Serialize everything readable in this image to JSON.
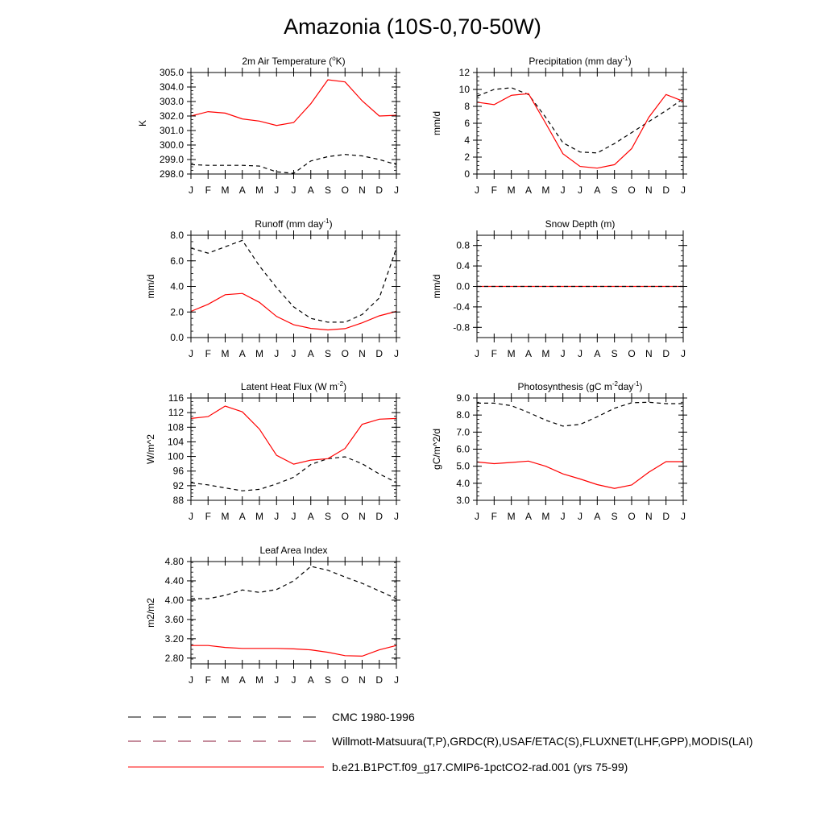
{
  "title": "Amazonia (10S-0,70-50W)",
  "colors": {
    "model": "#ff0000",
    "obs": "#000000",
    "axis": "#000000"
  },
  "months": [
    "J",
    "F",
    "M",
    "A",
    "M",
    "J",
    "J",
    "A",
    "S",
    "O",
    "N",
    "D",
    "J"
  ],
  "legend": [
    {
      "label": "CMC 1980-1996",
      "style": "dashed-black"
    },
    {
      "label": "Willmott-Matsuura(T,P),GRDC(R),USAF/ETAC(S),FLUXNET(LHF,GPP),MODIS(LAI)",
      "style": "dashed-mixed"
    },
    {
      "label": "b.e21.B1PCT.f09_g17.CMIP6-1pctCO2-rad.001 (yrs 75-99)",
      "style": "solid-red"
    }
  ],
  "chart_data": [
    {
      "type": "line",
      "title": "2m Air Temperature (",
      "title_sup": "o",
      "title_tail": "K)",
      "ylabel": "K",
      "ylim": [
        298.0,
        305.0
      ],
      "yticks": [
        298.0,
        299.0,
        300.0,
        301.0,
        302.0,
        303.0,
        304.0,
        305.0
      ],
      "tick_decimals": 1,
      "series": [
        {
          "role": "model",
          "values": [
            302.0,
            302.3,
            302.2,
            301.8,
            301.65,
            301.35,
            301.55,
            302.85,
            304.5,
            304.35,
            303.05,
            302.0,
            302.05
          ]
        },
        {
          "role": "obs",
          "values": [
            298.65,
            298.6,
            298.6,
            298.6,
            298.55,
            298.15,
            298.05,
            298.9,
            299.2,
            299.35,
            299.25,
            299.0,
            298.65
          ]
        }
      ]
    },
    {
      "type": "line",
      "title": "Precipitation (mm day",
      "title_sup": "-1",
      "title_tail": ")",
      "ylabel": "mm/d",
      "ylim": [
        0,
        12
      ],
      "yticks": [
        0,
        2,
        4,
        6,
        8,
        10,
        12
      ],
      "tick_decimals": 0,
      "series": [
        {
          "role": "model",
          "values": [
            8.5,
            8.2,
            9.3,
            9.5,
            6.0,
            2.4,
            0.9,
            0.7,
            1.1,
            3.0,
            6.7,
            9.4,
            8.6
          ]
        },
        {
          "role": "obs",
          "values": [
            9.2,
            10.0,
            10.2,
            9.4,
            6.7,
            3.7,
            2.6,
            2.5,
            3.6,
            4.9,
            6.2,
            7.5,
            8.9
          ]
        }
      ]
    },
    {
      "type": "line",
      "title": "Runoff (mm day",
      "title_sup": "-1",
      "title_tail": ")",
      "ylabel": "mm/d",
      "ylim": [
        0.0,
        8.0
      ],
      "yticks": [
        0.0,
        2.0,
        4.0,
        6.0,
        8.0
      ],
      "tick_decimals": 1,
      "series": [
        {
          "role": "model",
          "values": [
            2.05,
            2.6,
            3.35,
            3.45,
            2.75,
            1.65,
            1.0,
            0.72,
            0.6,
            0.7,
            1.15,
            1.7,
            2.05
          ]
        },
        {
          "role": "obs",
          "values": [
            7.0,
            6.6,
            7.1,
            7.6,
            5.6,
            3.9,
            2.4,
            1.5,
            1.2,
            1.2,
            1.8,
            3.1,
            7.0
          ]
        }
      ]
    },
    {
      "type": "line",
      "title": "Snow Depth (m)",
      "title_sup": "",
      "title_tail": "",
      "ylabel": "mm/d",
      "ylim": [
        -1.0,
        1.0
      ],
      "yticks": [
        -0.8,
        -0.4,
        0.0,
        0.4,
        0.8
      ],
      "tick_decimals": 1,
      "series": [
        {
          "role": "obs",
          "values": [
            0,
            0,
            0,
            0,
            0,
            0,
            0,
            0,
            0,
            0,
            0,
            0,
            0
          ]
        },
        {
          "role": "model",
          "values": [
            0,
            0,
            0,
            0,
            0,
            0,
            0,
            0,
            0,
            0,
            0,
            0,
            0
          ]
        }
      ]
    },
    {
      "type": "line",
      "title": "Latent Heat Flux (W m",
      "title_sup": "-2",
      "title_tail": ")",
      "ylabel": "W/m^2",
      "ylim": [
        88,
        116
      ],
      "yticks": [
        88,
        92,
        96,
        100,
        104,
        108,
        112,
        116
      ],
      "tick_decimals": 0,
      "series": [
        {
          "role": "model",
          "values": [
            110.4,
            110.9,
            113.8,
            112.2,
            107.5,
            100.3,
            97.9,
            99.0,
            99.4,
            102.2,
            108.8,
            110.2,
            110.4
          ]
        },
        {
          "role": "obs",
          "values": [
            92.8,
            92.2,
            91.4,
            90.6,
            91.0,
            92.5,
            94.3,
            97.8,
            99.4,
            99.9,
            98.0,
            95.2,
            92.9
          ]
        }
      ]
    },
    {
      "type": "line",
      "title": "Photosynthesis (gC m",
      "title_sup": "-2",
      "title_mid": "day",
      "title_sup2": "-1",
      "title_tail": ")",
      "ylabel": "gC/m^2/d",
      "ylim": [
        3.0,
        9.0
      ],
      "yticks": [
        3.0,
        4.0,
        5.0,
        6.0,
        7.0,
        8.0,
        9.0
      ],
      "tick_decimals": 1,
      "series": [
        {
          "role": "model",
          "values": [
            5.25,
            5.15,
            5.22,
            5.3,
            5.0,
            4.55,
            4.25,
            3.92,
            3.7,
            3.9,
            4.65,
            5.27,
            5.27
          ]
        },
        {
          "role": "obs",
          "values": [
            8.7,
            8.7,
            8.55,
            8.15,
            7.7,
            7.35,
            7.45,
            7.9,
            8.4,
            8.72,
            8.75,
            8.67,
            8.67
          ]
        }
      ]
    },
    {
      "type": "line",
      "title": "Leaf Area Index",
      "title_sup": "",
      "title_tail": "",
      "ylabel": "m2/m2",
      "ylim": [
        2.68,
        4.8
      ],
      "yticks": [
        2.8,
        3.2,
        3.6,
        4.0,
        4.4,
        4.8
      ],
      "tick_decimals": 2,
      "series": [
        {
          "role": "model",
          "values": [
            3.06,
            3.06,
            3.02,
            3.0,
            3.0,
            3.0,
            2.99,
            2.97,
            2.92,
            2.85,
            2.84,
            2.97,
            3.06
          ]
        },
        {
          "role": "obs",
          "values": [
            4.03,
            4.03,
            4.1,
            4.21,
            4.16,
            4.22,
            4.4,
            4.7,
            4.62,
            4.48,
            4.35,
            4.19,
            4.03
          ]
        }
      ]
    }
  ]
}
